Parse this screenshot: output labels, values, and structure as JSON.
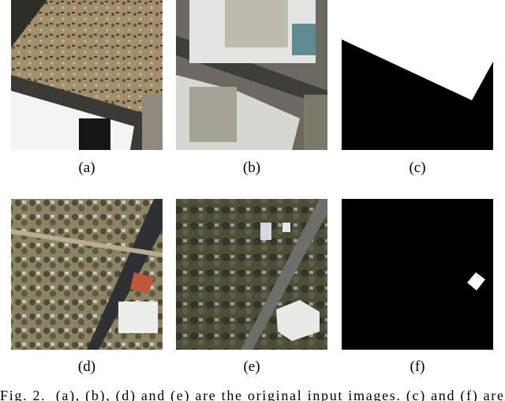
{
  "panels": [
    {
      "label": "(a)"
    },
    {
      "label": "(b)"
    },
    {
      "label": "(c)"
    },
    {
      "label": "(d)"
    },
    {
      "label": "(e)"
    },
    {
      "label": "(f)"
    }
  ],
  "caption": "Fig. 2.  (a), (b), (d) and (e) are the original input images. (c) and (f) are"
}
